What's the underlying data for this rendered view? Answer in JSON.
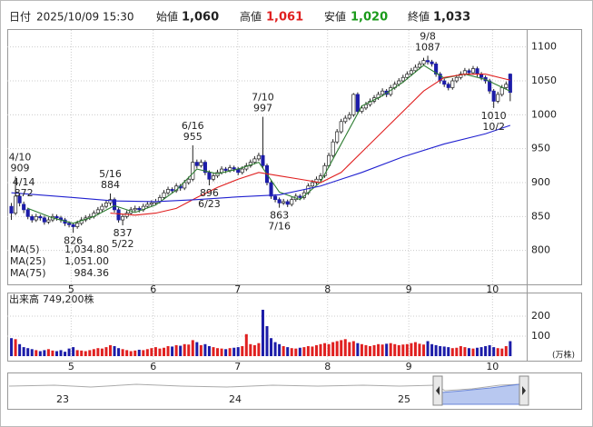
{
  "header": {
    "date_label": "日付",
    "date": "2025/10/09 15:30",
    "open_label": "始値",
    "open": {
      "value": 1060,
      "label": "1,060"
    },
    "high_label": "高値",
    "high": {
      "value": 1061,
      "label": "1,061"
    },
    "low_label": "安値",
    "low": {
      "value": 1020,
      "label": "1,020"
    },
    "close_label": "終値",
    "close": {
      "value": 1033,
      "label": "1,033"
    }
  },
  "chart_data": {
    "type": "candlestick",
    "ylim": [
      750,
      1125
    ],
    "yticks": [
      800,
      850,
      900,
      950,
      1000,
      1050,
      1100
    ],
    "xlim": [
      -1,
      125
    ],
    "xticks": [
      {
        "value": 14.5,
        "label": "5"
      },
      {
        "value": 34.4,
        "label": "6"
      },
      {
        "value": 54.9,
        "label": "7"
      },
      {
        "value": 76.7,
        "label": "8"
      },
      {
        "value": 96.4,
        "label": "9"
      },
      {
        "value": 116.7,
        "label": "10"
      }
    ],
    "up_color": "#ffffff",
    "down_color": "#1c1ca8",
    "ohlc": [
      [
        865,
        870,
        845,
        855
      ],
      [
        855,
        909,
        852,
        880
      ],
      [
        880,
        884,
        865,
        870
      ],
      [
        868,
        872,
        855,
        860
      ],
      [
        860,
        863,
        846,
        850
      ],
      [
        850,
        853,
        841,
        845
      ],
      [
        845,
        854,
        842,
        850
      ],
      [
        850,
        853,
        844,
        848
      ],
      [
        848,
        851,
        838,
        842
      ],
      [
        842,
        849,
        839,
        845
      ],
      [
        845,
        854,
        842,
        850
      ],
      [
        850,
        853,
        844,
        848
      ],
      [
        848,
        851,
        841,
        845
      ],
      [
        845,
        848,
        836,
        840
      ],
      [
        840,
        843,
        834,
        838
      ],
      [
        838,
        841,
        826,
        835
      ],
      [
        835,
        844,
        832,
        840
      ],
      [
        840,
        849,
        837,
        845
      ],
      [
        845,
        852,
        842,
        848
      ],
      [
        848,
        854,
        845,
        850
      ],
      [
        850,
        859,
        847,
        855
      ],
      [
        855,
        864,
        852,
        860
      ],
      [
        860,
        869,
        857,
        865
      ],
      [
        865,
        874,
        862,
        870
      ],
      [
        870,
        884,
        866,
        875
      ],
      [
        875,
        878,
        856,
        860
      ],
      [
        860,
        863,
        841,
        845
      ],
      [
        845,
        854,
        837,
        850
      ],
      [
        850,
        859,
        847,
        855
      ],
      [
        855,
        864,
        852,
        860
      ],
      [
        860,
        866,
        857,
        862
      ],
      [
        862,
        865,
        856,
        860
      ],
      [
        860,
        869,
        857,
        865
      ],
      [
        865,
        872,
        862,
        868
      ],
      [
        868,
        874,
        865,
        870
      ],
      [
        870,
        876,
        867,
        872
      ],
      [
        872,
        882,
        869,
        878
      ],
      [
        878,
        889,
        875,
        885
      ],
      [
        885,
        894,
        882,
        890
      ],
      [
        890,
        893,
        884,
        888
      ],
      [
        888,
        899,
        885,
        895
      ],
      [
        895,
        898,
        888,
        892
      ],
      [
        892,
        904,
        889,
        900
      ],
      [
        900,
        909,
        897,
        905
      ],
      [
        905,
        955,
        902,
        930
      ],
      [
        930,
        934,
        921,
        925
      ],
      [
        925,
        934,
        922,
        930
      ],
      [
        930,
        933,
        911,
        915
      ],
      [
        915,
        918,
        896,
        905
      ],
      [
        905,
        914,
        902,
        910
      ],
      [
        910,
        919,
        907,
        915
      ],
      [
        915,
        924,
        912,
        920
      ],
      [
        920,
        923,
        914,
        918
      ],
      [
        918,
        926,
        915,
        922
      ],
      [
        922,
        925,
        916,
        920
      ],
      [
        920,
        923,
        911,
        915
      ],
      [
        915,
        924,
        912,
        920
      ],
      [
        920,
        929,
        917,
        925
      ],
      [
        925,
        934,
        922,
        930
      ],
      [
        930,
        939,
        927,
        935
      ],
      [
        935,
        944,
        932,
        940
      ],
      [
        940,
        997,
        921,
        925
      ],
      [
        925,
        928,
        896,
        900
      ],
      [
        900,
        903,
        876,
        880
      ],
      [
        880,
        883,
        871,
        875
      ],
      [
        875,
        878,
        863,
        870
      ],
      [
        870,
        876,
        867,
        872
      ],
      [
        872,
        875,
        864,
        868
      ],
      [
        868,
        879,
        865,
        875
      ],
      [
        875,
        884,
        872,
        880
      ],
      [
        880,
        883,
        874,
        878
      ],
      [
        878,
        889,
        875,
        885
      ],
      [
        885,
        899,
        882,
        895
      ],
      [
        895,
        904,
        892,
        900
      ],
      [
        900,
        909,
        897,
        905
      ],
      [
        905,
        914,
        902,
        910
      ],
      [
        910,
        929,
        907,
        925
      ],
      [
        925,
        944,
        922,
        940
      ],
      [
        940,
        964,
        937,
        960
      ],
      [
        960,
        979,
        957,
        975
      ],
      [
        975,
        994,
        972,
        990
      ],
      [
        990,
        999,
        987,
        995
      ],
      [
        995,
        1004,
        992,
        1000
      ],
      [
        1000,
        1032,
        997,
        1030
      ],
      [
        1030,
        1033,
        1001,
        1005
      ],
      [
        1005,
        1014,
        1002,
        1010
      ],
      [
        1010,
        1019,
        1007,
        1015
      ],
      [
        1015,
        1024,
        1012,
        1020
      ],
      [
        1020,
        1029,
        1017,
        1025
      ],
      [
        1025,
        1034,
        1022,
        1030
      ],
      [
        1030,
        1039,
        1027,
        1035
      ],
      [
        1035,
        1038,
        1026,
        1030
      ],
      [
        1030,
        1044,
        1027,
        1040
      ],
      [
        1040,
        1049,
        1037,
        1045
      ],
      [
        1045,
        1054,
        1042,
        1050
      ],
      [
        1050,
        1059,
        1047,
        1055
      ],
      [
        1055,
        1064,
        1052,
        1060
      ],
      [
        1060,
        1069,
        1057,
        1065
      ],
      [
        1065,
        1074,
        1062,
        1070
      ],
      [
        1070,
        1079,
        1067,
        1075
      ],
      [
        1075,
        1084,
        1072,
        1080
      ],
      [
        1080,
        1087,
        1074,
        1078
      ],
      [
        1078,
        1081,
        1071,
        1075
      ],
      [
        1075,
        1078,
        1056,
        1060
      ],
      [
        1060,
        1063,
        1046,
        1050
      ],
      [
        1050,
        1053,
        1041,
        1045
      ],
      [
        1045,
        1048,
        1036,
        1040
      ],
      [
        1040,
        1054,
        1037,
        1050
      ],
      [
        1050,
        1059,
        1047,
        1055
      ],
      [
        1055,
        1064,
        1052,
        1060
      ],
      [
        1060,
        1069,
        1057,
        1065
      ],
      [
        1065,
        1068,
        1058,
        1062
      ],
      [
        1062,
        1072,
        1059,
        1068
      ],
      [
        1068,
        1071,
        1056,
        1060
      ],
      [
        1060,
        1063,
        1051,
        1055
      ],
      [
        1055,
        1058,
        1046,
        1050
      ],
      [
        1050,
        1053,
        1031,
        1035
      ],
      [
        1035,
        1038,
        1010,
        1020
      ],
      [
        1020,
        1034,
        1017,
        1030
      ],
      [
        1030,
        1044,
        1027,
        1040
      ],
      [
        1040,
        1049,
        1037,
        1045
      ],
      [
        1060,
        1061,
        1020,
        1033
      ]
    ],
    "series": [
      {
        "name": "MA(5)",
        "color": "#2e7d32",
        "last": {
          "value": 1034.8,
          "label": "1,034.80"
        },
        "x": [
          4,
          10,
          15,
          20,
          25,
          30,
          35,
          40,
          45,
          50,
          55,
          60,
          65,
          70,
          75,
          80,
          85,
          90,
          95,
          100,
          105,
          110,
          115,
          121
        ],
        "values": [
          862,
          848,
          840,
          850,
          866,
          856,
          867,
          889,
          920,
          913,
          920,
          930,
          886,
          875,
          901,
          957,
          1013,
          1028,
          1048,
          1073,
          1054,
          1060,
          1052,
          1034.8
        ]
      },
      {
        "name": "MA(25)",
        "color": "#e02020",
        "last": {
          "value": 1051,
          "label": "1,051.00"
        },
        "x": [
          24,
          30,
          35,
          40,
          45,
          50,
          55,
          60,
          65,
          70,
          75,
          80,
          85,
          90,
          95,
          100,
          105,
          110,
          115,
          121
        ],
        "values": [
          855,
          852,
          855,
          862,
          878,
          893,
          905,
          915,
          910,
          905,
          900,
          915,
          945,
          975,
          1005,
          1035,
          1055,
          1060,
          1060,
          1051
        ]
      },
      {
        "name": "MA(75)",
        "color": "#2020d0",
        "last": {
          "value": 984.36,
          "label": "984.36"
        },
        "x": [
          0,
          15,
          25,
          35,
          45,
          55,
          65,
          75,
          85,
          95,
          105,
          115,
          121
        ],
        "values": [
          885,
          878,
          873,
          872,
          875,
          879,
          882,
          895,
          915,
          938,
          957,
          972,
          984.36
        ]
      }
    ],
    "annotations": [
      {
        "date": "4/10",
        "value": 909,
        "x": 1
      },
      {
        "date": "4/14",
        "value": 872,
        "x": 3
      },
      {
        "value": 826,
        "x": 15
      },
      {
        "date": "5/16",
        "value": 884,
        "x": 24
      },
      {
        "date": "5/22",
        "value": 837,
        "x": 27
      },
      {
        "date": "6/16",
        "value": 955,
        "x": 44
      },
      {
        "date": "6/23",
        "value": 896,
        "x": 48
      },
      {
        "date": "7/10",
        "value": 997,
        "x": 61
      },
      {
        "date": "7/16",
        "value": 863,
        "x": 65
      },
      {
        "date": "9/8",
        "value": 1087,
        "x": 101
      },
      {
        "date": "10/2",
        "value": 1010,
        "x": 117
      }
    ],
    "volume": {
      "title": "出来高",
      "last": {
        "value": 749200,
        "label": "749,200株"
      },
      "unit": "(万株)",
      "ylim": [
        0,
        300
      ],
      "yticks": [
        100,
        200
      ],
      "values": [
        90,
        85,
        60,
        45,
        40,
        35,
        30,
        25,
        30,
        35,
        28,
        25,
        30,
        22,
        38,
        45,
        30,
        28,
        25,
        30,
        35,
        40,
        38,
        45,
        55,
        50,
        40,
        35,
        30,
        25,
        28,
        32,
        30,
        35,
        40,
        45,
        38,
        42,
        50,
        48,
        55,
        52,
        60,
        58,
        80,
        70,
        55,
        60,
        50,
        45,
        40,
        38,
        35,
        40,
        42,
        45,
        50,
        110,
        60,
        55,
        65,
        232,
        150,
        90,
        70,
        60,
        50,
        45,
        40,
        38,
        42,
        45,
        50,
        48,
        55,
        60,
        65,
        60,
        70,
        75,
        80,
        85,
        70,
        75,
        65,
        60,
        55,
        50,
        55,
        60,
        58,
        62,
        65,
        60,
        55,
        58,
        60,
        65,
        70,
        62,
        58,
        75,
        60,
        55,
        50,
        48,
        45,
        40,
        42,
        50,
        45,
        40,
        38,
        42,
        45,
        50,
        55,
        45,
        40,
        38,
        50,
        74.92
      ],
      "up_color": "#e02020",
      "down_color": "#1c1ca8"
    },
    "navigator": {
      "labels": [
        "23",
        "24",
        "25"
      ]
    }
  }
}
